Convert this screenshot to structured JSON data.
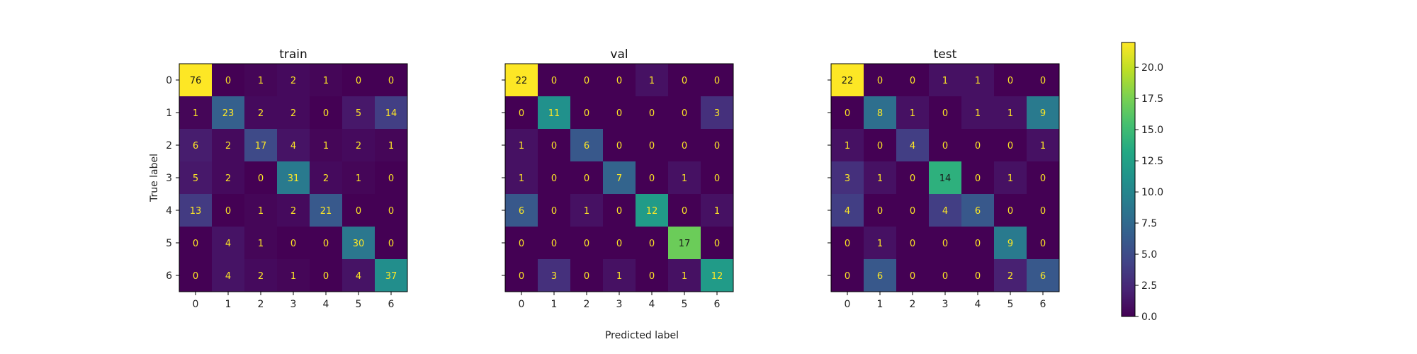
{
  "chart_data": {
    "type": "heatmap",
    "xlabel": "Predicted label",
    "ylabel": "True label",
    "classes": [
      "0",
      "1",
      "2",
      "3",
      "4",
      "5",
      "6"
    ],
    "colormap": "viridis",
    "colors": {
      "low": "#440154",
      "high": "#fde725",
      "text_on_dark": "#fde725",
      "text_on_light": "#1a1a1a"
    },
    "colorbar": {
      "min": 0,
      "max": 22,
      "ticks": [
        "0.0",
        "2.5",
        "5.0",
        "7.5",
        "10.0",
        "12.5",
        "15.0",
        "17.5",
        "20.0"
      ]
    },
    "panels": [
      {
        "title": "train",
        "matrix": [
          [
            76,
            0,
            1,
            2,
            1,
            0,
            0
          ],
          [
            1,
            23,
            2,
            2,
            0,
            5,
            14
          ],
          [
            6,
            2,
            17,
            4,
            1,
            2,
            1
          ],
          [
            5,
            2,
            0,
            31,
            2,
            1,
            0
          ],
          [
            13,
            0,
            1,
            2,
            21,
            0,
            0
          ],
          [
            0,
            4,
            1,
            0,
            0,
            30,
            0
          ],
          [
            0,
            4,
            2,
            1,
            0,
            4,
            37
          ]
        ]
      },
      {
        "title": "val",
        "matrix": [
          [
            22,
            0,
            0,
            0,
            1,
            0,
            0
          ],
          [
            0,
            11,
            0,
            0,
            0,
            0,
            3
          ],
          [
            1,
            0,
            6,
            0,
            0,
            0,
            0
          ],
          [
            1,
            0,
            0,
            7,
            0,
            1,
            0
          ],
          [
            6,
            0,
            1,
            0,
            12,
            0,
            1
          ],
          [
            0,
            0,
            0,
            0,
            0,
            17,
            0
          ],
          [
            0,
            3,
            0,
            1,
            0,
            1,
            12
          ]
        ]
      },
      {
        "title": "test",
        "matrix": [
          [
            22,
            0,
            0,
            1,
            1,
            0,
            0
          ],
          [
            0,
            8,
            1,
            0,
            1,
            1,
            9
          ],
          [
            1,
            0,
            4,
            0,
            0,
            0,
            1
          ],
          [
            3,
            1,
            0,
            14,
            0,
            1,
            0
          ],
          [
            4,
            0,
            0,
            4,
            6,
            0,
            0
          ],
          [
            0,
            1,
            0,
            0,
            0,
            9,
            0
          ],
          [
            0,
            6,
            0,
            0,
            0,
            2,
            6
          ]
        ]
      }
    ]
  }
}
